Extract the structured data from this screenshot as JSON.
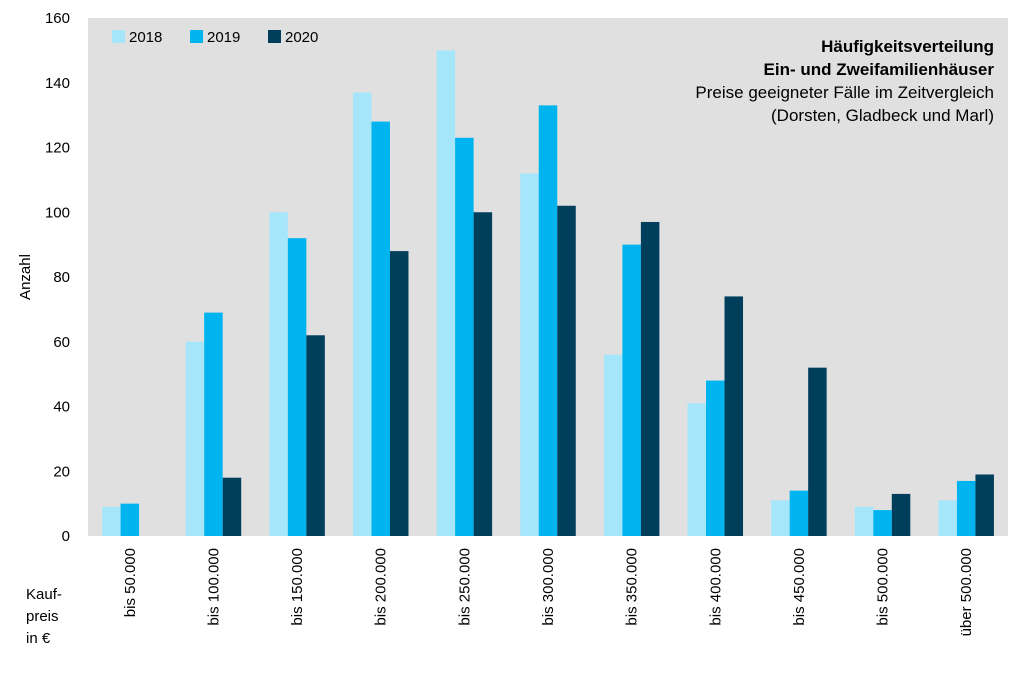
{
  "chart_data": {
    "type": "bar",
    "title": "Häufigkeitsverteilung",
    "subtitle": "Ein- und Zweifamilienhäuser",
    "note_line1": "Preise geeigneter Fälle im Zeitvergleich",
    "note_line2": "(Dorsten, Gladbeck und Marl)",
    "ylabel": "Anzahl",
    "xlabel_lines": [
      "Kauf-",
      "preis",
      "in €"
    ],
    "ylim": [
      0,
      160
    ],
    "yticks": [
      0,
      20,
      40,
      60,
      80,
      100,
      120,
      140,
      160
    ],
    "grid": false,
    "legend_position": "top-left",
    "categories": [
      "bis 50.000",
      "bis 100.000",
      "bis 150.000",
      "bis 200.000",
      "bis 250.000",
      "bis 300.000",
      "bis 350.000",
      "bis 400.000",
      "bis 450.000",
      "bis 500.000",
      "über 500.000"
    ],
    "series": [
      {
        "name": "2018",
        "color": "#a6e6fb",
        "values": [
          9,
          60,
          100,
          137,
          150,
          112,
          56,
          41,
          11,
          9,
          11
        ]
      },
      {
        "name": "2019",
        "color": "#00b4f0",
        "values": [
          10,
          69,
          92,
          128,
          123,
          133,
          90,
          48,
          14,
          8,
          17
        ]
      },
      {
        "name": "2020",
        "color": "#003f5c",
        "values": [
          0,
          18,
          62,
          88,
          100,
          102,
          97,
          74,
          52,
          13,
          19
        ]
      }
    ],
    "plot_background": "#e0e0e0"
  }
}
